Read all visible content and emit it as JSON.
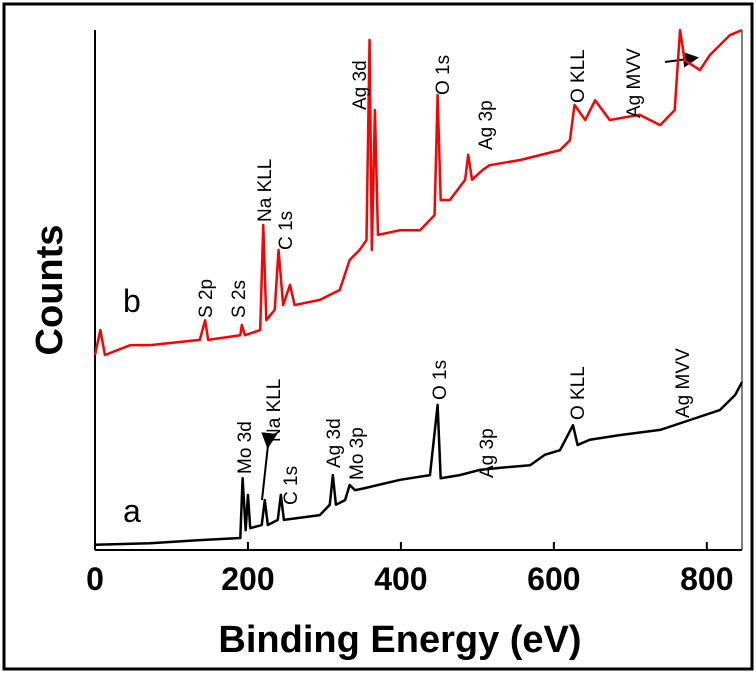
{
  "chart_data": {
    "type": "line",
    "x_label": "Binding Energy (eV)",
    "y_label": "Counts",
    "xlim": [
      0,
      846
    ],
    "xticks": [
      0,
      200,
      400,
      600,
      800
    ],
    "ylim": [
      0,
      100
    ],
    "series": [
      {
        "name": "b",
        "color": "#ff0000",
        "x": [
          0,
          7,
          13,
          46,
          72,
          137,
          144,
          148,
          190,
          192,
          196,
          216,
          220,
          224,
          235,
          240,
          246,
          255,
          261,
          294,
          320,
          333,
          346,
          355,
          359,
          362,
          366,
          370,
          399,
          425,
          444,
          448,
          452,
          464,
          484,
          488,
          493,
          507,
          516,
          556,
          608,
          621,
          627,
          641,
          654,
          673,
          712,
          739,
          758,
          765,
          771,
          791,
          804,
          817,
          830,
          846
        ],
        "values": [
          37.5,
          42.3,
          37.5,
          39.4,
          39.4,
          40.4,
          44.2,
          40.4,
          41.3,
          43.3,
          41.3,
          42.3,
          62.5,
          44.2,
          46.2,
          57.7,
          47.1,
          51,
          47.1,
          48.1,
          50,
          55.8,
          57.7,
          59.6,
          98.1,
          57.7,
          84.6,
          60.6,
          61.5,
          61.5,
          64.4,
          87.5,
          67.3,
          67.3,
          71.2,
          76,
          71.2,
          73.1,
          74,
          75,
          76.9,
          78.8,
          85.6,
          82.7,
          86.5,
          82.7,
          83.7,
          81.7,
          84.6,
          100,
          94.2,
          92.3,
          95.2,
          97.1,
          99,
          100
        ],
        "annotations": [
          "S 2p",
          "S 2s",
          "Na KLL",
          "C 1s",
          "Ag 3d",
          "O 1s",
          "Ag 3p",
          "O KLL",
          "Ag MVV"
        ]
      },
      {
        "name": "a",
        "color": "#000000",
        "x": [
          0,
          72,
          137,
          190,
          193,
          197,
          200,
          203,
          218,
          222,
          226,
          239,
          243,
          247,
          294,
          307,
          311,
          315,
          327,
          333,
          340,
          353,
          399,
          438,
          448,
          452,
          477,
          503,
          529,
          569,
          588,
          608,
          625,
          631,
          647,
          686,
          739,
          778,
          817,
          837,
          846
        ],
        "values": [
          1,
          1.3,
          1.9,
          2.3,
          13.8,
          3.8,
          10.6,
          4.2,
          4.8,
          9.6,
          4.8,
          5.8,
          10.6,
          5.8,
          6.7,
          8.7,
          14.4,
          8.7,
          9.6,
          12.5,
          11.5,
          11.9,
          13.5,
          14.4,
          27.9,
          13.8,
          14.4,
          15.4,
          15.8,
          16.3,
          18.3,
          19.2,
          24,
          20.2,
          21.2,
          22.1,
          23.1,
          25,
          26.9,
          29.8,
          32.3
        ],
        "annotations": [
          "Mo 3d",
          "Na KLL",
          "C 1s",
          "Ag 3d",
          "Mo 3p",
          "O 1s",
          "Ag 3p",
          "O KLL",
          "Ag MVV"
        ]
      }
    ]
  }
}
